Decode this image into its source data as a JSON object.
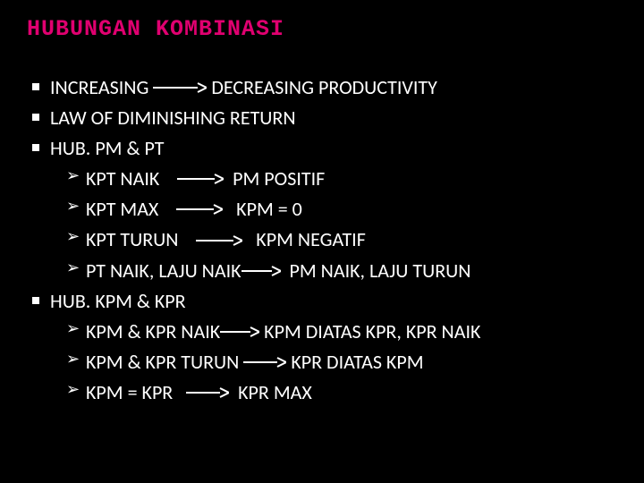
{
  "title": "HUBUNGAN KOMBINASI",
  "colors": {
    "background": "#000000",
    "title": "#e00070",
    "text": "#ffffff",
    "arrow": "#ffffff",
    "bullet": "#ffffff"
  },
  "typography": {
    "title_font": "Consolas",
    "title_size_pt": 20,
    "title_weight": 700,
    "body_font": "Calibri",
    "body_size_pt": 17,
    "body_weight": 400
  },
  "arrow_style": {
    "shaft_width": 48,
    "shaft_stroke": 2,
    "head_len": 10,
    "height": 14,
    "color": "#ffffff"
  },
  "items": [
    {
      "segments": [
        "INCREASING ",
        " DECREASING PRODUCTIVITY"
      ],
      "arrows_after_segment": [
        0
      ],
      "arrow_widths": [
        60
      ]
    },
    {
      "segments": [
        "LAW OF DIMINISHING RETURN"
      ],
      "arrows_after_segment": [],
      "arrow_widths": []
    },
    {
      "segments": [
        "HUB. PM & PT"
      ],
      "arrows_after_segment": [],
      "arrow_widths": [],
      "children": [
        {
          "segments": [
            "KPT NAIK    ",
            "  PM POSITIF"
          ],
          "arrows_after_segment": [
            0
          ],
          "arrow_widths": [
            52
          ]
        },
        {
          "segments": [
            "KPT MAX    ",
            "   KPM = 0"
          ],
          "arrows_after_segment": [
            0
          ],
          "arrow_widths": [
            52
          ]
        },
        {
          "segments": [
            "KPT TURUN    ",
            "   KPM NEGATIF"
          ],
          "arrows_after_segment": [
            0
          ],
          "arrow_widths": [
            52
          ]
        },
        {
          "segments": [
            "PT NAIK, LAJU NAIK",
            "  PM NAIK, LAJU TURUN"
          ],
          "arrows_after_segment": [
            0
          ],
          "arrow_widths": [
            44
          ]
        }
      ]
    },
    {
      "segments": [
        "HUB. KPM & KPR"
      ],
      "arrows_after_segment": [],
      "arrow_widths": [],
      "children": [
        {
          "segments": [
            "KPM & KPR NAIK",
            " KPM DIATAS KPR, KPR NAIK"
          ],
          "arrows_after_segment": [
            0
          ],
          "arrow_widths": [
            44
          ]
        },
        {
          "segments": [
            "KPM & KPR TURUN ",
            " KPR DIATAS KPM"
          ],
          "arrows_after_segment": [
            0
          ],
          "arrow_widths": [
            48
          ]
        },
        {
          "segments": [
            "KPM = KPR   ",
            "  KPR MAX"
          ],
          "arrows_after_segment": [
            0
          ],
          "arrow_widths": [
            48
          ]
        }
      ]
    }
  ]
}
